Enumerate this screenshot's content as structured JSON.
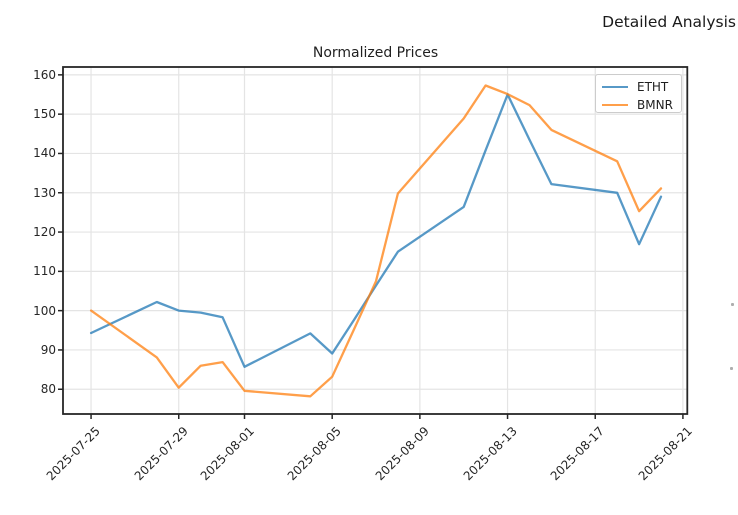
{
  "header": {
    "title": "Detailed Analysis"
  },
  "chart_data": {
    "type": "line",
    "title": "Normalized Prices",
    "xlabel": "",
    "ylabel": "",
    "x": [
      "2025-07-25",
      "2025-07-28",
      "2025-07-29",
      "2025-07-30",
      "2025-07-31",
      "2025-08-01",
      "2025-08-04",
      "2025-08-05",
      "2025-08-06",
      "2025-08-07",
      "2025-08-08",
      "2025-08-11",
      "2025-08-12",
      "2025-08-13",
      "2025-08-14",
      "2025-08-15",
      "2025-08-18",
      "2025-08-19",
      "2025-08-20"
    ],
    "series": [
      {
        "name": "ETHT",
        "color": "#1f77b4",
        "values": [
          94.3,
          102.2,
          100.0,
          99.5,
          98.3,
          85.7,
          94.2,
          89.1,
          97.7,
          106.4,
          115.0,
          126.4,
          140.8,
          155.0,
          143.5,
          132.2,
          130.0,
          116.9,
          129.0
        ]
      },
      {
        "name": "BMNR",
        "color": "#ff7f0e",
        "values": [
          100.0,
          88.1,
          80.4,
          86.0,
          86.9,
          79.6,
          78.2,
          83.2,
          95.3,
          107.5,
          129.8,
          148.9,
          157.3,
          155.1,
          152.3,
          146.0,
          138.0,
          125.3,
          131.1
        ]
      }
    ],
    "x_tick_labels": [
      "2025-07-25",
      "2025-07-29",
      "2025-08-01",
      "2025-08-05",
      "2025-08-09",
      "2025-08-13",
      "2025-08-17",
      "2025-08-21"
    ],
    "y_ticks": [
      80,
      90,
      100,
      110,
      120,
      130,
      140,
      150,
      160
    ],
    "ylim": [
      73.7,
      162.0
    ],
    "xlim_days": [
      -1.28,
      27.2
    ],
    "grid": true,
    "legend_position": "upper right",
    "line_alpha": 0.75,
    "grid_color": "#e4e4e4",
    "spine_color": "#262626"
  }
}
